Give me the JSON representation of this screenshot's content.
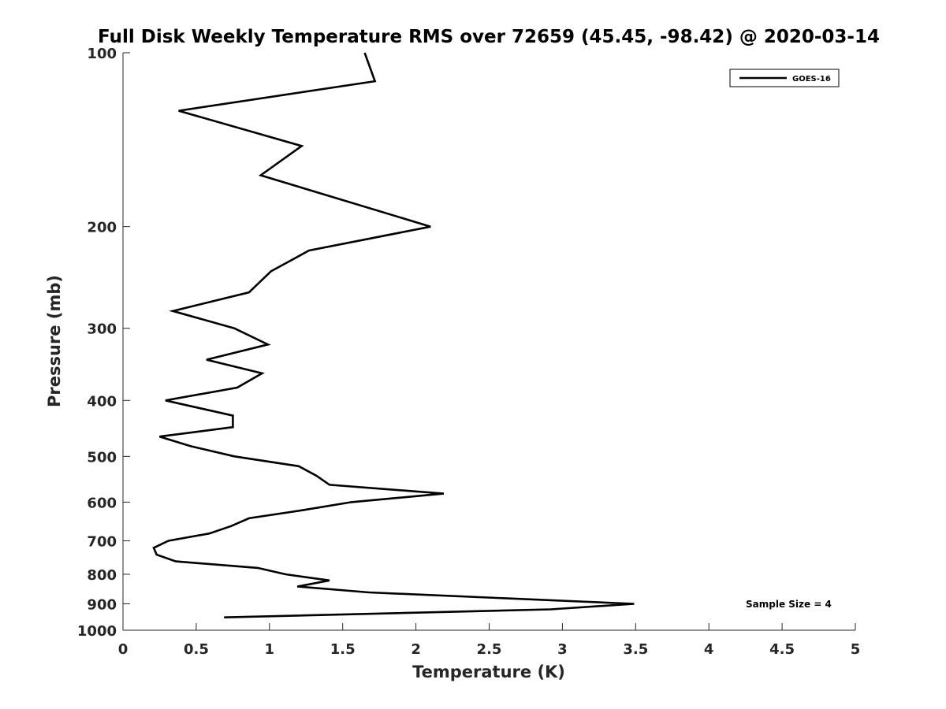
{
  "chart_data": {
    "type": "line",
    "title": "Full Disk Weekly Temperature RMS over 72659 (45.45, -98.42) @ 2020-03-14",
    "xlabel": "Temperature (K)",
    "ylabel": "Pressure (mb)",
    "xlim": [
      0,
      5
    ],
    "ylim": [
      100,
      1000
    ],
    "y_scale": "log",
    "y_reversed": true,
    "x_ticks": [
      "0",
      "0.5",
      "1",
      "1.5",
      "2",
      "2.5",
      "3",
      "3.5",
      "4",
      "4.5",
      "5"
    ],
    "y_ticks": [
      "100",
      "200",
      "300",
      "400",
      "500",
      "600",
      "700",
      "800",
      "900",
      "1000"
    ],
    "grid": false,
    "legend": {
      "position": "top-right",
      "entries": [
        "GOES-16"
      ]
    },
    "annotations": [
      "Sample Size = 4"
    ],
    "series": [
      {
        "name": "GOES-16",
        "color": "#000000",
        "x": [
          1.65,
          1.72,
          0.38,
          1.22,
          0.94,
          2.1,
          1.27,
          1.01,
          0.86,
          0.34,
          0.76,
          0.99,
          0.57,
          0.95,
          0.78,
          0.29,
          0.75,
          0.75,
          0.25,
          0.46,
          0.76,
          1.2,
          1.32,
          1.41,
          2.19,
          1.56,
          1.22,
          0.86,
          0.74,
          0.59,
          0.31,
          0.21,
          0.23,
          0.36,
          0.92,
          1.11,
          1.41,
          1.19,
          1.68,
          3.49,
          2.92,
          0.69
        ],
        "y": [
          100,
          112,
          126,
          145,
          163,
          200,
          220,
          239,
          260,
          280,
          300,
          320,
          340,
          359,
          380,
          400,
          425,
          445,
          462,
          480,
          500,
          520,
          540,
          560,
          580,
          600,
          620,
          640,
          660,
          680,
          700,
          720,
          740,
          760,
          780,
          800,
          820,
          840,
          860,
          900,
          920,
          950
        ]
      }
    ]
  }
}
